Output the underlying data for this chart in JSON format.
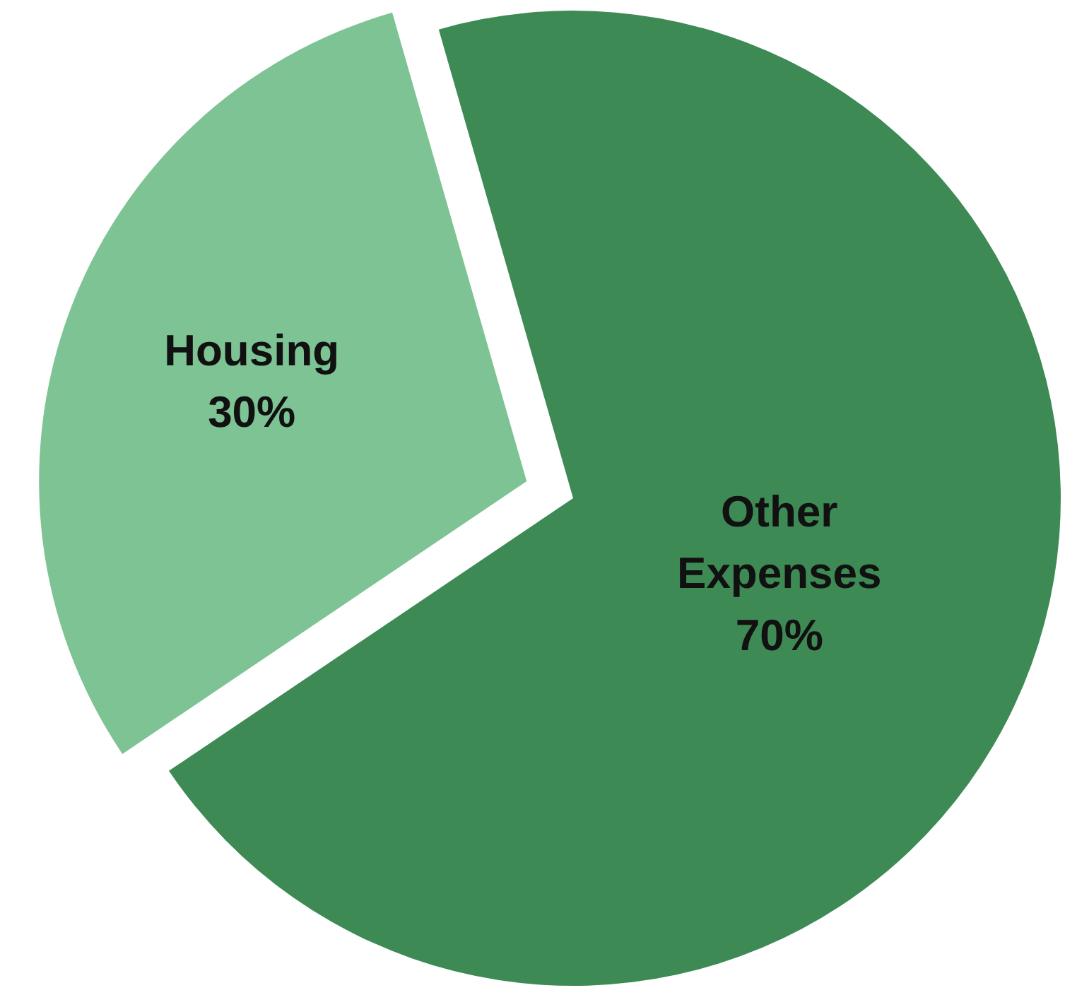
{
  "chart_data": {
    "type": "pie",
    "categories": [
      "Housing",
      "Other Expenses"
    ],
    "values": [
      30,
      70
    ],
    "colors": [
      "#7dc393",
      "#3d8a55"
    ],
    "value_labels": [
      "30%",
      "70%"
    ]
  }
}
